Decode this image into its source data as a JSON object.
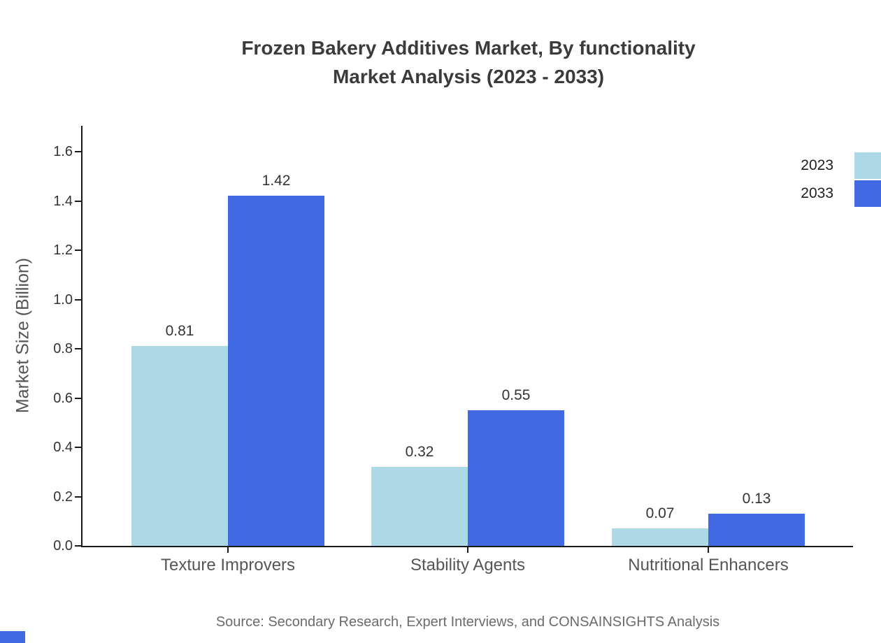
{
  "page": {
    "background": "#ffffff",
    "source_note": "Source: Secondary Research, Expert Interviews, and CONSAINSIGHTS Analysis"
  },
  "chart_data": {
    "type": "bar",
    "title_line1": "Frozen Bakery Additives Market, By functionality",
    "title_line2": "Market Analysis (2023 - 2033)",
    "categories": [
      "Texture Improvers",
      "Stability Agents",
      "Nutritional Enhancers"
    ],
    "series": [
      {
        "name": "2023",
        "color": "#add8e6",
        "values": [
          0.81,
          0.32,
          0.07
        ]
      },
      {
        "name": "2033",
        "color": "#4169e1",
        "values": [
          1.42,
          0.55,
          0.13
        ]
      }
    ],
    "xlabel": "",
    "ylabel": "Market Size (Billion)",
    "ylim": [
      0,
      1.6
    ],
    "ytick_step": 0.2,
    "yticks": [
      "0.0",
      "0.2",
      "0.4",
      "0.6",
      "0.8",
      "1.0",
      "1.2",
      "1.4",
      "1.6"
    ],
    "grid": false,
    "legend_position": "top-right",
    "accent_color": "#4169e1"
  }
}
